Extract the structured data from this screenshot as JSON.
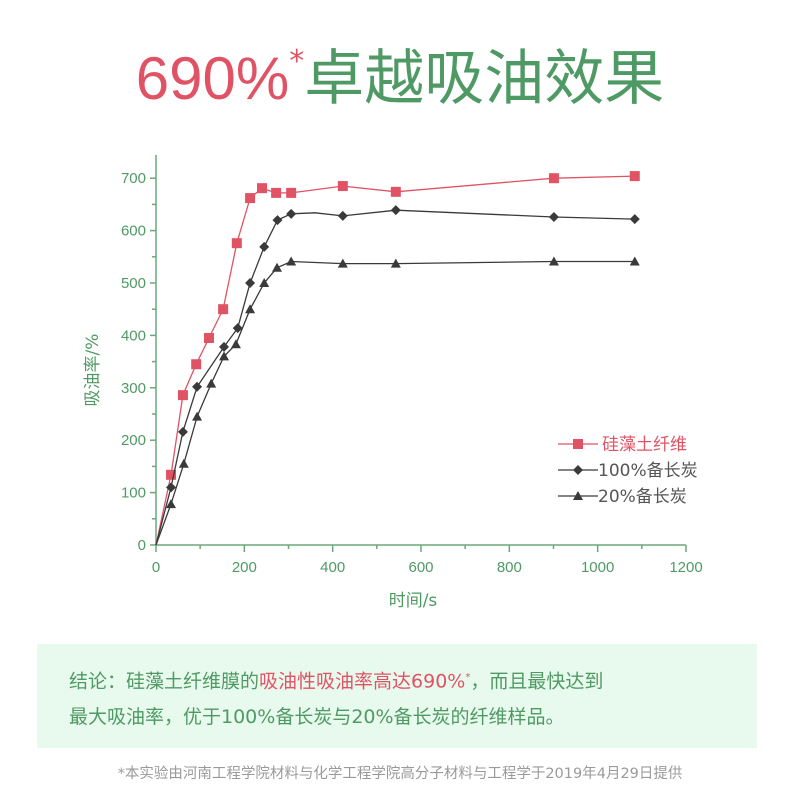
{
  "title": {
    "number": "690%",
    "asterisk": "*",
    "text": "卓越吸油效果",
    "number_color": "#e05365",
    "text_color": "#4f9a64"
  },
  "chart_data": {
    "type": "line",
    "title": "690%* 卓越吸油效果",
    "xlabel": "时间/s",
    "ylabel": "吸油率/%",
    "xlim": [
      0,
      1200
    ],
    "ylim": [
      0,
      750
    ],
    "xticks": [
      0,
      200,
      400,
      600,
      800,
      1000,
      1200
    ],
    "yticks": [
      0,
      100,
      200,
      300,
      400,
      500,
      600,
      700
    ],
    "grid": false,
    "legend_position": "right-center",
    "series": [
      {
        "name": "硅藻土纤维",
        "color": "#e05365",
        "marker": "square",
        "x": [
          0,
          34,
          61,
          91,
          120,
          152,
          183,
          213,
          240,
          272,
          306,
          423,
          543,
          901,
          1084
        ],
        "y": [
          0,
          134,
          286,
          345,
          395,
          450,
          576,
          662,
          681,
          672,
          672,
          685,
          674,
          700,
          704
        ]
      },
      {
        "name": "100%备长炭",
        "color": "#3a3a3a",
        "marker": "diamond",
        "x": [
          0,
          34,
          61,
          93,
          154,
          185,
          213,
          245,
          275,
          306,
          360,
          423,
          543,
          901,
          1084
        ],
        "y": [
          0,
          110,
          216,
          302,
          378,
          414,
          500,
          569,
          620,
          632,
          634,
          628,
          639,
          626,
          622
        ],
        "marker_mask": [
          false,
          true,
          true,
          true,
          true,
          true,
          true,
          true,
          true,
          true,
          false,
          true,
          true,
          true,
          true
        ]
      },
      {
        "name": "20%备长炭",
        "color": "#3a3a3a",
        "marker": "triangle",
        "x": [
          0,
          34,
          63,
          93,
          125,
          154,
          181,
          213,
          245,
          274,
          306,
          423,
          543,
          901,
          1084
        ],
        "y": [
          0,
          78,
          155,
          245,
          308,
          360,
          383,
          450,
          500,
          529,
          541,
          537,
          537,
          541,
          541
        ]
      }
    ]
  },
  "conclusion": {
    "prefix": "结论：硅藻土纤维膜的",
    "highlight": "吸油性吸油率高达690%",
    "highlight_sup": "*",
    "suffix_line1": "，而且最快达到",
    "line2": "最大吸油率，优于100%备长炭与20%备长炭的纤维样品。",
    "background": "#e8f9ed"
  },
  "footnote": "*本实验由河南工程学院材料与化学工程学院高分子材料与工程学于2019年4月29日提供"
}
